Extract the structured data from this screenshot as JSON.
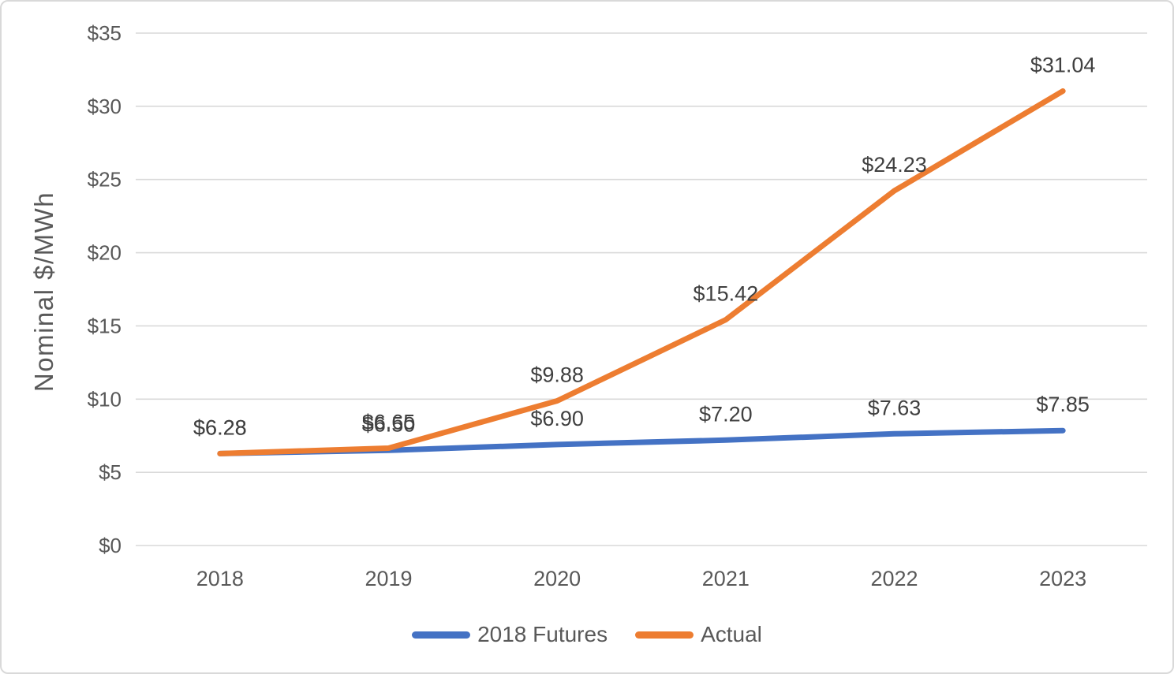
{
  "theme": {
    "background": "#FFFFFF",
    "border_color": "#D9D9D9",
    "grid_color": "#D9D9D9",
    "axis_text_color": "#595959",
    "data_label_color": "#404040",
    "futures_color": "#4472C4",
    "actual_color": "#ED7D31"
  },
  "chart_data": {
    "type": "line",
    "title": "",
    "xlabel": "",
    "ylabel": "Nominal $/MWh",
    "categories": [
      "2018",
      "2019",
      "2020",
      "2021",
      "2022",
      "2023"
    ],
    "series": [
      {
        "name": "2018 Futures",
        "color": "#4472C4",
        "values": [
          6.28,
          6.5,
          6.9,
          7.2,
          7.63,
          7.85
        ],
        "point_labels": [
          "$6.28",
          "$6.50",
          "$6.90",
          "$7.20",
          "$7.63",
          "$7.85"
        ]
      },
      {
        "name": "Actual",
        "color": "#ED7D31",
        "values": [
          6.28,
          6.65,
          9.88,
          15.42,
          24.23,
          31.04
        ],
        "point_labels": [
          "$6.28",
          "$6.65",
          "$9.88",
          "$15.42",
          "$24.23",
          "$31.04"
        ]
      }
    ],
    "ylim": [
      0,
      35
    ],
    "yticks": [
      0,
      5,
      10,
      15,
      20,
      25,
      30,
      35
    ],
    "ytick_labels": [
      "$0",
      "$5",
      "$10",
      "$15",
      "$20",
      "$25",
      "$30",
      "$35"
    ],
    "grid": true,
    "legend_position": "bottom",
    "note": "2018 and 2019 data labels of the two series overlap on the chart"
  },
  "legend": {
    "items": [
      {
        "label": "2018 Futures",
        "color": "#4472C4"
      },
      {
        "label": "Actual",
        "color": "#ED7D31"
      }
    ]
  }
}
